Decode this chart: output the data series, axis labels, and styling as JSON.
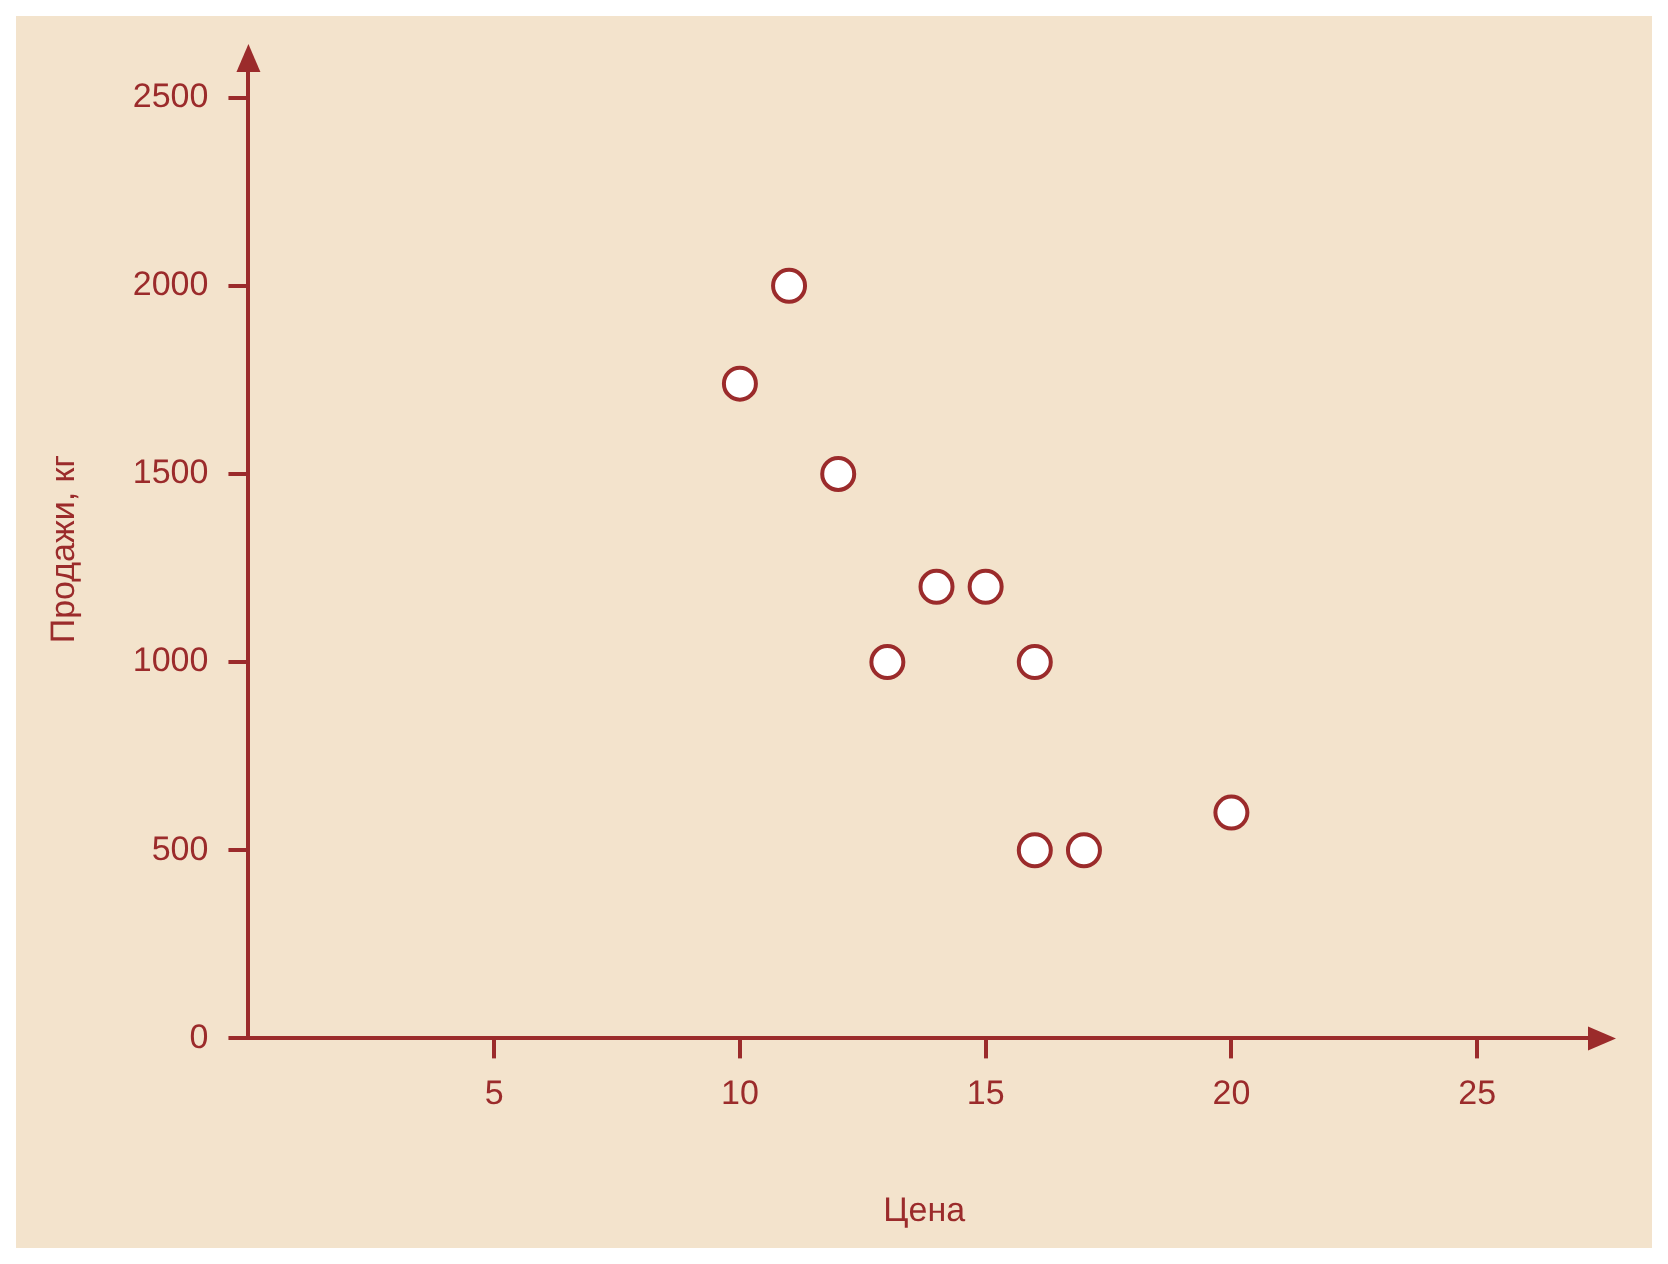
{
  "chart_data": {
    "type": "scatter",
    "xlabel": "Цена",
    "ylabel": "Продажи, кг",
    "x": [
      10,
      11,
      12,
      13,
      14,
      15,
      16,
      16,
      17,
      20
    ],
    "values": [
      1740,
      2000,
      1500,
      1000,
      1200,
      1200,
      1000,
      500,
      500,
      600
    ],
    "color": "#9b2b2b",
    "marker": "circle",
    "grid": false,
    "xlim": [
      0,
      27.5
    ],
    "xticks": [
      5,
      10,
      15,
      20,
      25
    ],
    "ylim": [
      0,
      2600
    ],
    "yticks": [
      0,
      500,
      1000,
      1500,
      2000,
      2500
    ]
  }
}
